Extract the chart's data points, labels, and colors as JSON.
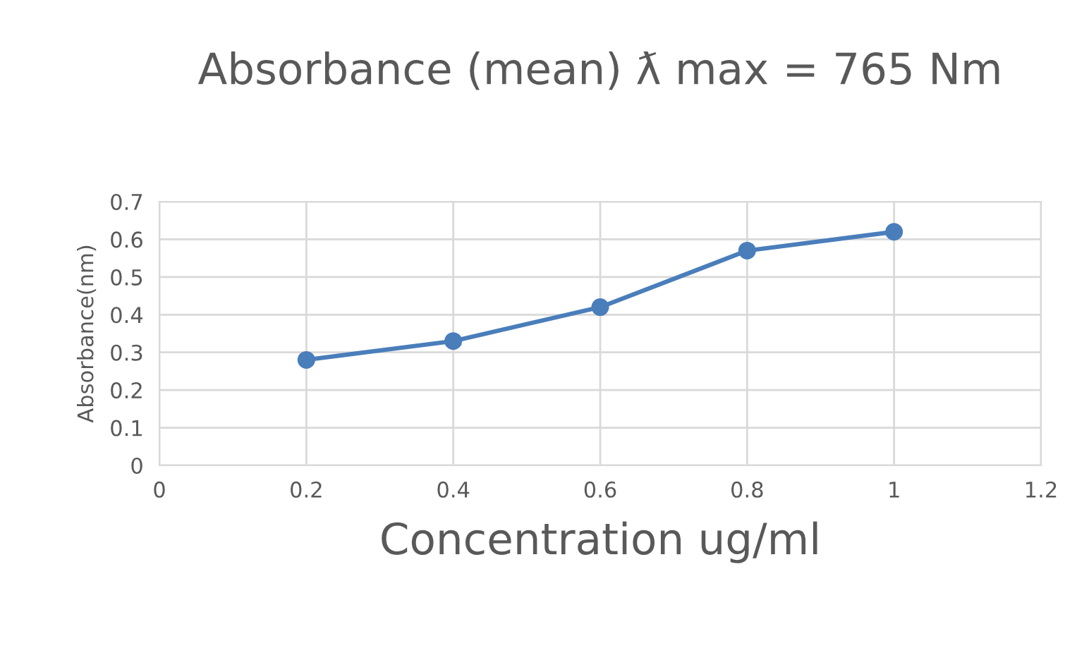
{
  "chart_data": {
    "type": "line",
    "title": "Absorbance (mean) ƛ max = 765 Nm",
    "xlabel": "Concentration ug/ml",
    "ylabel": "Absorbance(nm)",
    "x": [
      0.2,
      0.4,
      0.6,
      0.8,
      1
    ],
    "series": [
      {
        "color": "#4a7ebb",
        "values": [
          0.28,
          0.33,
          0.42,
          0.57,
          0.62
        ]
      }
    ],
    "xlim": [
      0,
      1.2
    ],
    "xticks": [
      0,
      0.2,
      0.4,
      0.6,
      0.8,
      1,
      1.2
    ],
    "ylim": [
      0,
      0.7
    ],
    "yticks": [
      0,
      0.1,
      0.2,
      0.3,
      0.4,
      0.5,
      0.6,
      0.7
    ],
    "grid": true,
    "marker": "circle",
    "line_style": "solid"
  }
}
